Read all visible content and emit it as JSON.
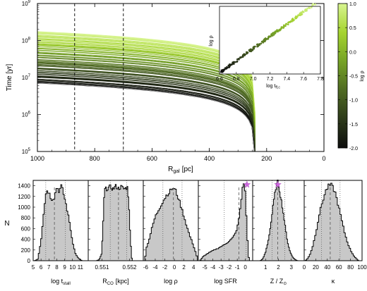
{
  "chart_data": [
    {
      "type": "line",
      "xlabel": "R",
      "xlabel_sub": "gal",
      "xlabel_unit": "[pc]",
      "ylabel": "Time  [yr]",
      "xlim": [
        1000,
        0
      ],
      "ylim_log10": [
        5,
        9
      ],
      "xticks": [
        "1000",
        "800",
        "600",
        "400",
        "200",
        "0"
      ],
      "xtick_values": [
        1000,
        800,
        600,
        400,
        200,
        0
      ],
      "yticks": [
        {
          "base": "10",
          "exp": "5",
          "v": 5
        },
        {
          "base": "10",
          "exp": "6",
          "v": 6
        },
        {
          "base": "10",
          "exp": "7",
          "v": 7
        },
        {
          "base": "10",
          "exp": "8",
          "v": 8
        },
        {
          "base": "10",
          "exp": "9",
          "v": 9
        }
      ],
      "vlines": [
        870,
        700
      ],
      "curves": {
        "end_radius": 240,
        "count": 70,
        "log_time_at_1000pc_range": [
          6.85,
          8.25
        ],
        "log_rho_range": [
          -2.0,
          1.0
        ],
        "shape": "time(R) ∝ (R - 240)^0.65 , color by log ρ"
      },
      "grid": false
    },
    {
      "type": "colorbar",
      "label": "log ρ",
      "ticks": [
        "1.0",
        "0.5",
        "0.0",
        "-0.5",
        "-1.0",
        "-1.5",
        "-2.0"
      ],
      "tick_values": [
        1.0,
        0.5,
        0.0,
        -0.5,
        -1.0,
        -1.5,
        -2.0
      ],
      "range": [
        -2.0,
        1.0
      ],
      "colormap": [
        "#0d0d0d",
        "#2d3a1a",
        "#4f6a22",
        "#76a326",
        "#a5d42f",
        "#d8f590"
      ]
    },
    {
      "type": "scatter",
      "inset": true,
      "xlabel": "log t",
      "xlabel_sub": "ff,c",
      "ylabel": "log ρ",
      "xlim": [
        6.6,
        7.8
      ],
      "xticks": [
        "6.6",
        "6.8",
        "7.0",
        "7.2",
        "7.4",
        "7.6",
        "7.8"
      ],
      "xtick_values": [
        6.6,
        6.8,
        7.0,
        7.2,
        7.4,
        7.6,
        7.8
      ],
      "ylim": [
        -2.1,
        1.0
      ],
      "relation": "log ρ ≈ -2.0 + 2.8 (log t - 6.62)",
      "n_points": 230
    },
    {
      "type": "histogram",
      "panels": [
        {
          "xlabel": "log t",
          "xlabel_sub": "stall",
          "xlim": [
            5,
            12
          ],
          "xticks": [
            "5",
            "6",
            "7",
            "8",
            "9",
            "10",
            "11"
          ],
          "xtick_values": [
            5,
            6,
            7,
            8,
            9,
            10,
            11
          ],
          "dashed": 7.7,
          "dotted": [
            6.6,
            9.1
          ],
          "star": null,
          "profile": [
            [
              5.2,
              0
            ],
            [
              5.6,
              30
            ],
            [
              6.0,
              380
            ],
            [
              6.4,
              1000
            ],
            [
              6.7,
              1330
            ],
            [
              7.0,
              1280
            ],
            [
              7.3,
              1150
            ],
            [
              7.7,
              1180
            ],
            [
              8.0,
              1380
            ],
            [
              8.3,
              1300
            ],
            [
              8.6,
              1400
            ],
            [
              8.9,
              1230
            ],
            [
              9.2,
              1040
            ],
            [
              9.6,
              740
            ],
            [
              10.0,
              360
            ],
            [
              10.4,
              120
            ],
            [
              10.8,
              40
            ],
            [
              11.2,
              0
            ]
          ]
        },
        {
          "xlabel": "R",
          "xlabel_sub": "CO",
          "xlabel_unit": "[kpc]",
          "xlim": [
            0.5505,
            0.5525
          ],
          "xticks": [
            "0.551",
            "0.552"
          ],
          "xtick_values": [
            0.551,
            0.552
          ],
          "dashed": 0.5516,
          "dotted": [
            0.5513,
            0.5519
          ],
          "star": null,
          "profile": [
            [
              0.5508,
              0
            ],
            [
              0.5509,
              20
            ],
            [
              0.55098,
              120
            ],
            [
              0.55103,
              520
            ],
            [
              0.55107,
              1120
            ],
            [
              0.5511,
              1330
            ],
            [
              0.5512,
              1350
            ],
            [
              0.5513,
              1380
            ],
            [
              0.5514,
              1340
            ],
            [
              0.5515,
              1390
            ],
            [
              0.5516,
              1350
            ],
            [
              0.5517,
              1380
            ],
            [
              0.5518,
              1340
            ],
            [
              0.55193,
              1370
            ],
            [
              0.55198,
              1050
            ],
            [
              0.55203,
              420
            ],
            [
              0.55208,
              60
            ],
            [
              0.5521,
              0
            ]
          ]
        },
        {
          "xlabel": "log ρ",
          "xlim": [
            -6.5,
            5
          ],
          "xticks": [
            "-6",
            "-4",
            "-2",
            "0",
            "2",
            "4"
          ],
          "xtick_values": [
            -6,
            -4,
            -2,
            0,
            2,
            4
          ],
          "dashed": -0.2,
          "dotted": [
            -2.4,
            1.6
          ],
          "star": null,
          "profile": [
            [
              -6.2,
              0
            ],
            [
              -5.8,
              250
            ],
            [
              -5.2,
              420
            ],
            [
              -4.6,
              640
            ],
            [
              -4.0,
              820
            ],
            [
              -3.4,
              930
            ],
            [
              -2.8,
              1040
            ],
            [
              -2.2,
              1140
            ],
            [
              -1.6,
              1230
            ],
            [
              -1.0,
              1280
            ],
            [
              -0.4,
              1360
            ],
            [
              0.2,
              1320
            ],
            [
              0.8,
              1180
            ],
            [
              1.4,
              1010
            ],
            [
              2.0,
              830
            ],
            [
              2.6,
              640
            ],
            [
              3.2,
              470
            ],
            [
              3.8,
              330
            ],
            [
              4.4,
              170
            ],
            [
              4.8,
              50
            ]
          ]
        },
        {
          "xlabel": "log SFR",
          "xlim": [
            -5.8,
            0.9
          ],
          "xticks": [
            "-5",
            "-4",
            "-3",
            "-2",
            "-1",
            "0"
          ],
          "xtick_values": [
            -5,
            -4,
            -3,
            -2,
            -1,
            0
          ],
          "dashed": -0.8,
          "dotted": [
            -2.6,
            0.1
          ],
          "star": 0.2,
          "profile": [
            [
              -5.6,
              0
            ],
            [
              -5.2,
              80
            ],
            [
              -4.6,
              140
            ],
            [
              -4.0,
              190
            ],
            [
              -3.4,
              230
            ],
            [
              -2.8,
              280
            ],
            [
              -2.2,
              340
            ],
            [
              -1.6,
              420
            ],
            [
              -1.2,
              520
            ],
            [
              -0.9,
              680
            ],
            [
              -0.6,
              1000
            ],
            [
              -0.3,
              1420
            ],
            [
              -0.15,
              1480
            ],
            [
              0.0,
              1220
            ],
            [
              0.2,
              600
            ],
            [
              0.35,
              120
            ],
            [
              0.5,
              0
            ]
          ]
        },
        {
          "xlabel": "Z / Z",
          "xlabel_sub": "⊙",
          "xlim": [
            0,
            4
          ],
          "xticks": [
            "1",
            "2",
            "3"
          ],
          "xtick_values": [
            1,
            2,
            3
          ],
          "dashed": 1.95,
          "dotted": [
            1.5,
            2.5
          ],
          "star": 1.95,
          "profile": [
            [
              0.6,
              0
            ],
            [
              0.8,
              40
            ],
            [
              1.0,
              160
            ],
            [
              1.2,
              360
            ],
            [
              1.4,
              660
            ],
            [
              1.6,
              1050
            ],
            [
              1.8,
              1370
            ],
            [
              1.95,
              1470
            ],
            [
              2.1,
              1300
            ],
            [
              2.3,
              1020
            ],
            [
              2.5,
              680
            ],
            [
              2.7,
              360
            ],
            [
              2.9,
              170
            ],
            [
              3.1,
              70
            ],
            [
              3.3,
              20
            ],
            [
              3.5,
              0
            ]
          ]
        },
        {
          "xlabel": "κ",
          "xlim": [
            0,
            100
          ],
          "xticks": [
            "0",
            "20",
            "40",
            "60",
            "80",
            "100"
          ],
          "xtick_values": [
            0,
            20,
            40,
            60,
            80,
            100
          ],
          "dashed": 45,
          "dotted": [
            30,
            62
          ],
          "star": null,
          "profile": [
            [
              2,
              0
            ],
            [
              6,
              40
            ],
            [
              10,
              120
            ],
            [
              14,
              240
            ],
            [
              18,
              420
            ],
            [
              22,
              620
            ],
            [
              26,
              860
            ],
            [
              30,
              1040
            ],
            [
              34,
              1190
            ],
            [
              38,
              1320
            ],
            [
              42,
              1390
            ],
            [
              46,
              1420
            ],
            [
              50,
              1360
            ],
            [
              54,
              1260
            ],
            [
              58,
              1080
            ],
            [
              62,
              900
            ],
            [
              66,
              700
            ],
            [
              70,
              520
            ],
            [
              74,
              370
            ],
            [
              78,
              250
            ],
            [
              82,
              160
            ],
            [
              86,
              90
            ],
            [
              90,
              40
            ],
            [
              94,
              0
            ]
          ]
        }
      ],
      "ylabel": "N",
      "ylim": [
        0,
        1500
      ],
      "yticks": [
        "0",
        "200",
        "400",
        "600",
        "800",
        "1000",
        "1200",
        "1400"
      ],
      "ytick_values": [
        0,
        200,
        400,
        600,
        800,
        1000,
        1200,
        1400
      ]
    }
  ]
}
